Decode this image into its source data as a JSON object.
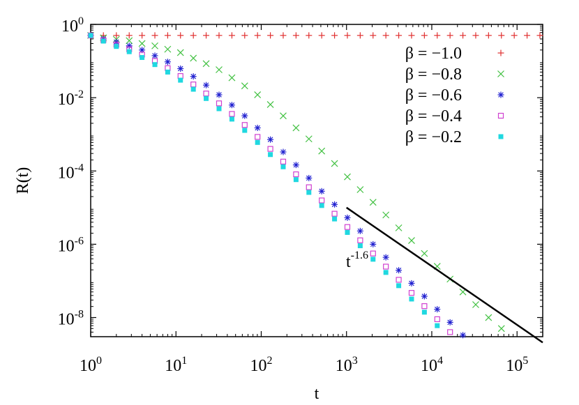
{
  "chart_data": {
    "type": "scatter",
    "xlabel": "t",
    "ylabel": "R(t)",
    "xscale": "log",
    "yscale": "log",
    "xlim": [
      1,
      200000
    ],
    "ylim": [
      3e-09,
      1
    ],
    "x_ticks": [
      {
        "base": "10",
        "exp": "0",
        "value": 1
      },
      {
        "base": "10",
        "exp": "1",
        "value": 10
      },
      {
        "base": "10",
        "exp": "2",
        "value": 100
      },
      {
        "base": "10",
        "exp": "3",
        "value": 1000
      },
      {
        "base": "10",
        "exp": "4",
        "value": 10000
      },
      {
        "base": "10",
        "exp": "5",
        "value": 100000
      }
    ],
    "y_ticks": [
      {
        "base": "10",
        "exp": "0",
        "value": 1
      },
      {
        "base": "10",
        "exp": "-2",
        "value": 0.01
      },
      {
        "base": "10",
        "exp": "-4",
        "value": 0.0001
      },
      {
        "base": "10",
        "exp": "-6",
        "value": 1e-06
      },
      {
        "base": "10",
        "exp": "-8",
        "value": 1e-08
      }
    ],
    "legend_position": "top-right",
    "grid": false,
    "x": [
      1,
      1.41,
      2,
      2.83,
      4,
      5.66,
      8,
      11.3,
      16,
      22.6,
      32,
      45.3,
      64,
      90.5,
      128,
      181,
      256,
      362,
      512,
      724,
      1024,
      1448,
      2048,
      2896,
      4096,
      5793,
      8192,
      11585,
      16384,
      23170,
      32768,
      46341,
      65536,
      92682,
      131072,
      185364
    ],
    "series": [
      {
        "name": "β = −1.0",
        "marker": "plus",
        "color": "#e03030",
        "values": [
          0.5,
          0.5,
          0.5,
          0.5,
          0.5,
          0.5,
          0.5,
          0.5,
          0.5,
          0.5,
          0.5,
          0.5,
          0.5,
          0.5,
          0.5,
          0.5,
          0.5,
          0.5,
          0.5,
          0.5,
          0.5,
          0.5,
          0.5,
          0.5,
          0.5,
          0.5,
          0.5,
          0.5,
          0.5,
          0.5,
          0.5,
          0.5,
          0.5,
          0.5,
          0.5,
          0.5
        ]
      },
      {
        "name": "β = −0.8",
        "marker": "cross",
        "color": "#40c040",
        "values": [
          0.5,
          0.43,
          0.39,
          0.36,
          0.3,
          0.26,
          0.21,
          0.17,
          0.12,
          0.085,
          0.058,
          0.035,
          0.021,
          0.012,
          0.0065,
          0.0032,
          0.0015,
          0.00075,
          0.00035,
          0.00016,
          6.9e-05,
          3.1e-05,
          1.4e-05,
          6.3e-06,
          2.8e-06,
          1.26e-06,
          5.6e-07,
          2.5e-07,
          1.12e-07,
          5e-08,
          2.25e-08,
          1e-08,
          5e-09
        ]
      },
      {
        "name": "β = −0.6",
        "marker": "star",
        "color": "#2020d0",
        "values": [
          0.5,
          0.4,
          0.33,
          0.26,
          0.2,
          0.14,
          0.095,
          0.062,
          0.038,
          0.022,
          0.012,
          0.0063,
          0.0032,
          0.0015,
          0.00072,
          0.00033,
          0.000146,
          6.4e-05,
          2.8e-05,
          1.22e-05,
          5.3e-06,
          2.3e-06,
          1e-06,
          4.4e-07,
          1.95e-07,
          8.6e-08,
          3.8e-08,
          1.68e-08,
          7.4e-09,
          3.3e-09
        ]
      },
      {
        "name": "β = −0.4",
        "marker": "square-open",
        "color": "#d040d0",
        "values": [
          0.5,
          0.37,
          0.28,
          0.21,
          0.15,
          0.1,
          0.064,
          0.039,
          0.023,
          0.013,
          0.007,
          0.0036,
          0.0018,
          0.00085,
          0.0004,
          0.00018,
          8.1e-05,
          3.6e-05,
          1.57e-05,
          6.8e-06,
          2.95e-06,
          1.28e-06,
          5.6e-07,
          2.45e-07,
          1.07e-07,
          4.7e-08,
          2.05e-08,
          9e-09,
          4e-09
        ]
      },
      {
        "name": "β = −0.2",
        "marker": "square-filled",
        "color": "#20d8e0",
        "values": [
          0.5,
          0.35,
          0.25,
          0.18,
          0.125,
          0.08,
          0.05,
          0.03,
          0.017,
          0.0095,
          0.005,
          0.0026,
          0.00128,
          0.0006,
          0.00028,
          0.00013,
          5.8e-05,
          2.6e-05,
          1.14e-05,
          4.9e-06,
          2.1e-06,
          9.1e-07,
          3.9e-07,
          1.7e-07,
          7.4e-08,
          3.2e-08,
          1.4e-08,
          6e-09,
          2.8e-09
        ]
      }
    ],
    "fit_line": {
      "exponent": -1.6,
      "x_start": 1000,
      "x_end": 200000,
      "y_start": 1e-05,
      "label_base": "t",
      "label_exp": "-1.6",
      "color": "#000000"
    }
  }
}
